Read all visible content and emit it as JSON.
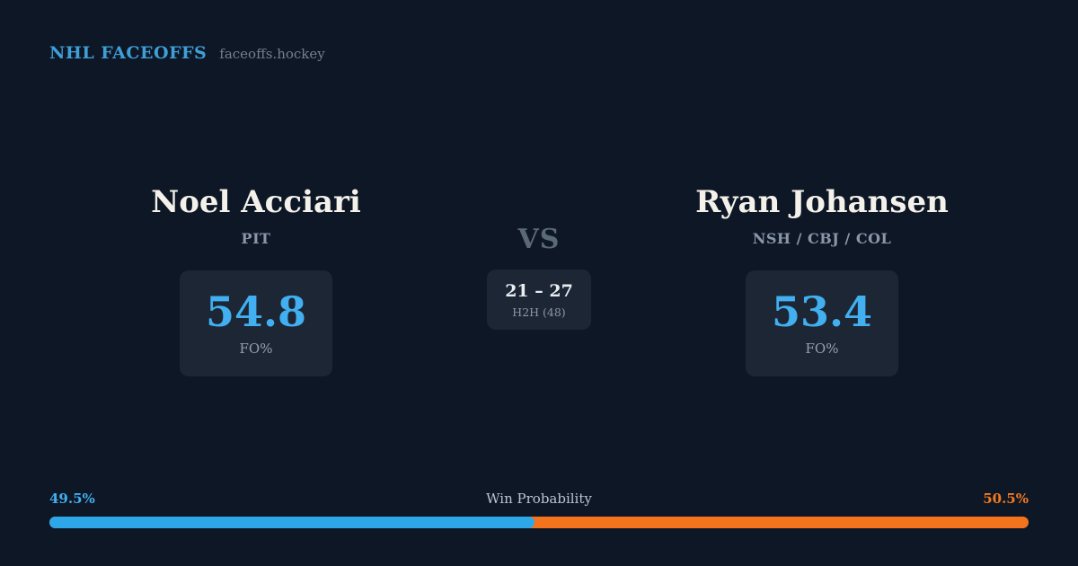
{
  "header": {
    "brand": "NHL FACEOFFS",
    "site": "faceoffs.hockey"
  },
  "matchup": {
    "player1": {
      "name": "Noel Acciari",
      "teams": "PIT",
      "stat_value": "54.8",
      "stat_label": "FO%"
    },
    "vs_label": "VS",
    "h2h": {
      "score": "21 – 27",
      "sub_label": "H2H (48)"
    },
    "player2": {
      "name": "Ryan Johansen",
      "teams": "NSH / CBJ / COL",
      "stat_value": "53.4",
      "stat_label": "FO%"
    }
  },
  "win_probability": {
    "title": "Win Probability",
    "left_label": "49.5%",
    "right_label": "50.5%",
    "left_value": 49.5,
    "right_value": 50.5
  },
  "colors": {
    "background": "#0e1725",
    "card": "#1c2634",
    "accent_blue": "#41aff0",
    "accent_orange": "#f5731c",
    "brand_blue": "#3f9fd8",
    "muted_text": "#8a97ab",
    "heading_text": "#f3f1ea"
  }
}
